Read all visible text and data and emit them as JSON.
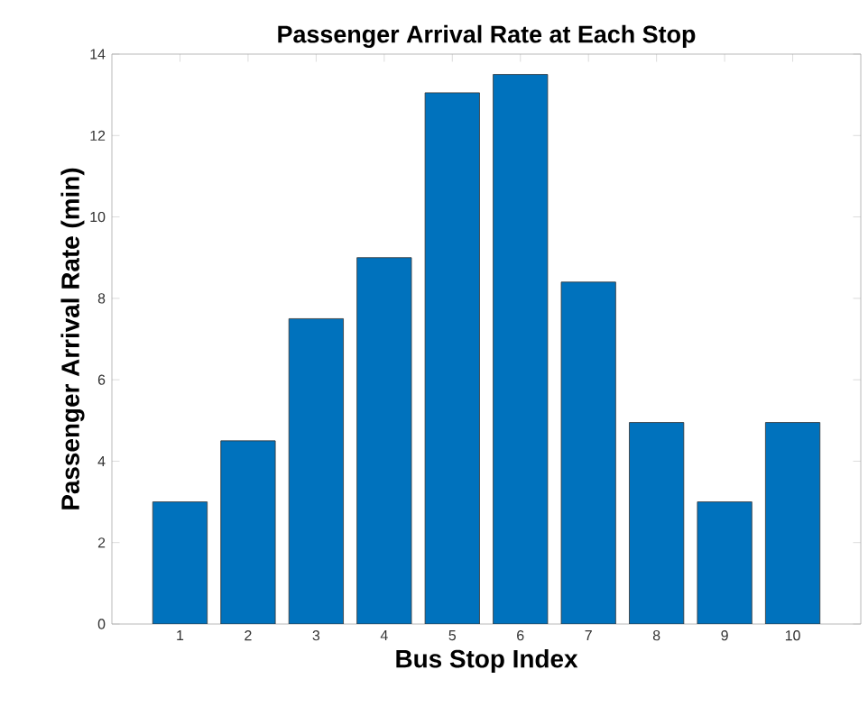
{
  "chart_data": {
    "type": "bar",
    "title": "Passenger Arrival Rate at Each Stop",
    "xlabel": "Bus Stop Index",
    "ylabel": "Passenger Arrival Rate (min)",
    "categories": [
      "1",
      "2",
      "3",
      "4",
      "5",
      "6",
      "7",
      "8",
      "9",
      "10"
    ],
    "values": [
      3,
      4.5,
      7.5,
      9,
      13.05,
      13.5,
      8.4,
      4.95,
      3,
      4.95
    ],
    "color": "#0072bd",
    "ylim": [
      0,
      14
    ],
    "yticks": [
      0,
      2,
      4,
      6,
      8,
      10,
      12,
      14
    ]
  }
}
